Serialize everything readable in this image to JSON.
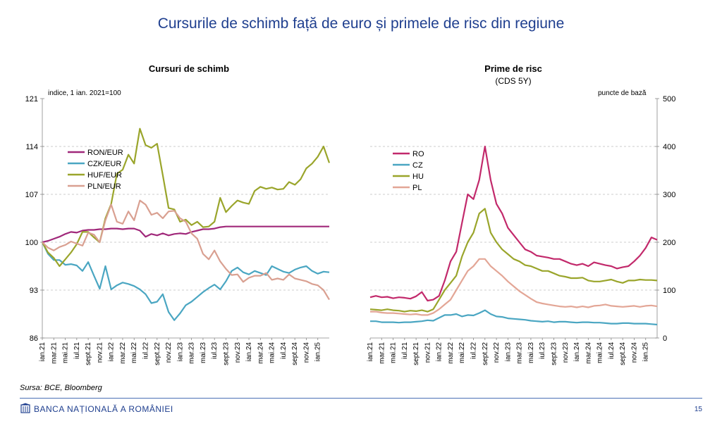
{
  "page": {
    "title": "Cursurile de schimb față de euro și primele de risc din regiune",
    "source": "Sursa: BCE, Bloomberg",
    "footer_bank": "BANCA NAȚIONALĂ A ROMÂNIEI",
    "page_number": "15"
  },
  "colors": {
    "title_blue": "#1f3f8f",
    "RON": "#a0287a",
    "CZK": "#4aa6c2",
    "HUF": "#9aa52b",
    "PLN": "#d9a091",
    "RO": "#c2296b",
    "CZ": "#4aa6c2",
    "HU": "#9aa52b",
    "PL": "#e3a696"
  },
  "x_ticks": [
    "ian.21",
    "mar.21",
    "mai.21",
    "iul.21",
    "sept.21",
    "nov.21",
    "ian.22",
    "mar.22",
    "mai.22",
    "iul.22",
    "sept.22",
    "nov.22",
    "ian.23",
    "mar.23",
    "mai.23",
    "iul.23",
    "sept.23",
    "nov.23",
    "ian.24",
    "mar.24",
    "mai.24",
    "iul.24",
    "sept.24",
    "nov.24",
    "ian.25"
  ],
  "chart_data": [
    {
      "type": "line",
      "title": "Cursuri de schimb",
      "unit_label": "indice, 1 ian. 2021=100",
      "ylim": [
        86,
        121
      ],
      "yticks": [
        86,
        93,
        100,
        107,
        114,
        121
      ],
      "grid": "horizontal dashed",
      "legend_position": "top-left",
      "x_months": [
        0,
        1,
        2,
        3,
        4,
        5,
        6,
        7,
        8,
        9,
        10,
        11,
        12,
        13,
        14,
        15,
        16,
        17,
        18,
        19,
        20,
        21,
        22,
        23,
        24,
        25,
        26,
        27,
        28,
        29,
        30,
        31,
        32,
        33,
        34,
        35,
        36,
        37,
        38,
        39,
        40,
        41,
        42,
        43,
        44,
        45,
        46,
        47,
        48,
        49,
        50
      ],
      "series": [
        {
          "name": "RON/EUR",
          "color_key": "RON",
          "values": [
            100,
            100.2,
            100.5,
            100.8,
            101.2,
            101.5,
            101.4,
            101.7,
            101.8,
            101.8,
            101.9,
            101.9,
            102,
            102,
            101.9,
            102,
            102,
            101.7,
            100.8,
            101.2,
            101,
            101.3,
            101,
            101.2,
            101.3,
            101.2,
            101.5,
            101.7,
            101.9,
            101.9,
            102,
            102.2,
            102.3,
            102.3,
            102.3,
            102.3,
            102.3,
            102.3,
            102.3,
            102.3,
            102.3,
            102.3,
            102.3,
            102.3,
            102.3,
            102.3,
            102.3,
            102.3,
            102.3,
            102.3,
            102.3
          ]
        },
        {
          "name": "CZK/EUR",
          "color_key": "CZK",
          "values": [
            100,
            98.3,
            97.4,
            97.4,
            96.7,
            96.8,
            96.6,
            95.8,
            97.1,
            95.1,
            93.2,
            96.5,
            93.1,
            93.7,
            94.1,
            93.9,
            93.6,
            93.1,
            92.4,
            91.1,
            91.3,
            92.4,
            89.8,
            88.6,
            89.6,
            90.8,
            91.3,
            92,
            92.7,
            93.3,
            93.8,
            93.1,
            94.3,
            95.8,
            96.3,
            95.6,
            95.3,
            95.8,
            95.5,
            95.2,
            96.5,
            96.1,
            95.7,
            95.5,
            96,
            96.3,
            96.5,
            95.8,
            95.4,
            95.7,
            95.6
          ]
        },
        {
          "name": "HUF/EUR",
          "color_key": "HUF",
          "values": [
            100,
            98.5,
            97.7,
            96.5,
            97.5,
            98.5,
            99.7,
            101.5,
            101.5,
            100.7,
            100,
            103.5,
            105.6,
            110,
            110.6,
            112.8,
            111.5,
            116.6,
            114.2,
            113.8,
            114.4,
            109.8,
            105,
            104.8,
            103,
            103.3,
            102.5,
            103,
            102.2,
            102.3,
            103,
            106.5,
            104.4,
            105.3,
            106.1,
            105.8,
            105.6,
            107.5,
            108.1,
            107.8,
            108,
            107.7,
            107.8,
            108.8,
            108.4,
            109.2,
            110.8,
            111.5,
            112.5,
            114,
            111.6
          ]
        },
        {
          "name": "PLN/EUR",
          "color_key": "PLN",
          "values": [
            100,
            99.2,
            98.8,
            99.3,
            99.6,
            100.1,
            99.8,
            99.5,
            101.4,
            101.1,
            100,
            103.2,
            105.5,
            103,
            102.7,
            104.5,
            103.2,
            106.1,
            105.5,
            104,
            104.3,
            103.5,
            104.5,
            104.6,
            103.5,
            103,
            101.3,
            100.5,
            98.3,
            97.5,
            98.8,
            97.2,
            96.1,
            95.2,
            95.3,
            94.2,
            94.8,
            95.1,
            95.1,
            95.5,
            94.5,
            94.7,
            94.5,
            95.3,
            94.7,
            94.5,
            94.3,
            93.9,
            93.7,
            93,
            91.6
          ]
        }
      ]
    },
    {
      "type": "line",
      "title": "Prime de risc",
      "subtitle": "(CDS 5Y)",
      "unit_label": "puncte de bază",
      "ylim": [
        0,
        500
      ],
      "yticks": [
        0,
        100,
        200,
        300,
        400,
        500
      ],
      "y_axis_side": "right",
      "grid": "horizontal dashed",
      "legend_position": "top-left",
      "x_months": [
        0,
        1,
        2,
        3,
        4,
        5,
        6,
        7,
        8,
        9,
        10,
        11,
        12,
        13,
        14,
        15,
        16,
        17,
        18,
        19,
        20,
        21,
        22,
        23,
        24,
        25,
        26,
        27,
        28,
        29,
        30,
        31,
        32,
        33,
        34,
        35,
        36,
        37,
        38,
        39,
        40,
        41,
        42,
        43,
        44,
        45,
        46,
        47,
        48,
        49,
        50
      ],
      "series": [
        {
          "name": "RO",
          "color_key": "RO",
          "values": [
            85,
            88,
            85,
            86,
            83,
            85,
            84,
            82,
            87,
            96,
            78,
            80,
            88,
            120,
            160,
            180,
            240,
            300,
            290,
            330,
            400,
            330,
            280,
            260,
            230,
            215,
            200,
            185,
            180,
            172,
            170,
            168,
            165,
            165,
            160,
            155,
            152,
            155,
            150,
            158,
            155,
            152,
            150,
            145,
            148,
            150,
            160,
            172,
            188,
            210,
            205
          ]
        },
        {
          "name": "CZ",
          "color_key": "CZ",
          "values": [
            35,
            35,
            33,
            33,
            33,
            32,
            33,
            33,
            34,
            35,
            37,
            36,
            42,
            48,
            48,
            50,
            45,
            48,
            47,
            52,
            58,
            50,
            45,
            44,
            41,
            40,
            39,
            38,
            36,
            35,
            34,
            35,
            33,
            34,
            34,
            33,
            32,
            33,
            33,
            32,
            32,
            31,
            30,
            30,
            31,
            31,
            30,
            30,
            30,
            29,
            28
          ]
        },
        {
          "name": "HU",
          "color_key": "HU",
          "values": [
            60,
            59,
            58,
            60,
            58,
            57,
            55,
            57,
            56,
            58,
            55,
            60,
            80,
            100,
            115,
            130,
            170,
            200,
            220,
            260,
            270,
            220,
            200,
            185,
            175,
            165,
            160,
            152,
            150,
            145,
            140,
            140,
            135,
            130,
            128,
            125,
            125,
            126,
            120,
            118,
            118,
            120,
            122,
            118,
            115,
            120,
            120,
            122,
            121,
            121,
            120
          ]
        },
        {
          "name": "PL",
          "color_key": "PL",
          "values": [
            55,
            55,
            53,
            52,
            52,
            51,
            50,
            49,
            50,
            48,
            48,
            52,
            60,
            70,
            80,
            100,
            120,
            140,
            150,
            165,
            165,
            150,
            140,
            130,
            118,
            108,
            98,
            90,
            82,
            75,
            72,
            70,
            68,
            66,
            65,
            66,
            64,
            66,
            64,
            67,
            68,
            70,
            67,
            66,
            65,
            66,
            67,
            65,
            67,
            68,
            66
          ]
        }
      ]
    }
  ]
}
